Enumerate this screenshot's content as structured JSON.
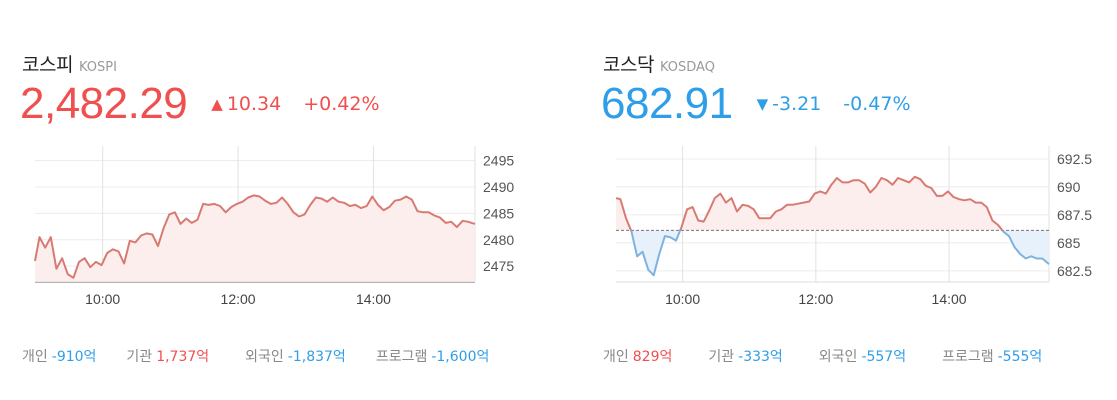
{
  "kospi": {
    "name_ko": "코스피",
    "name_en": "KOSPI",
    "price": "2,482.29",
    "direction": "up",
    "change": "10.34",
    "rate": "+0.42%",
    "investors": [
      {
        "label": "개인",
        "value": "-910억",
        "dir": "down"
      },
      {
        "label": "기관",
        "value": "1,737억",
        "dir": "up"
      },
      {
        "label": "외국인",
        "value": "-1,837억",
        "dir": "down"
      },
      {
        "label": "프로그램",
        "value": "-1,600억",
        "dir": "down"
      }
    ]
  },
  "kosdaq": {
    "name_ko": "코스닥",
    "name_en": "KOSDAQ",
    "price": "682.91",
    "direction": "down",
    "change": "-3.21",
    "rate": "-0.47%",
    "investors": [
      {
        "label": "개인",
        "value": "829억",
        "dir": "up"
      },
      {
        "label": "기관",
        "value": "-333억",
        "dir": "down"
      },
      {
        "label": "외국인",
        "value": "-557억",
        "dir": "down"
      },
      {
        "label": "프로그램",
        "value": "-555억",
        "dir": "down"
      }
    ]
  },
  "colors": {
    "up": "#f04f4f",
    "down": "#2f9ee8",
    "line_up": "#d97a72",
    "line_down": "#7fb2dd",
    "fill_up": "#fdeeee",
    "fill_down": "#e6f1fb"
  },
  "chart_data": [
    {
      "type": "line",
      "name": "KOSPI",
      "x_unit": "time",
      "xlim": [
        "09:00",
        "15:30"
      ],
      "ylim": [
        2472,
        2497
      ],
      "yticks": [
        2475,
        2480,
        2485,
        2490,
        2495
      ],
      "ytick_labels": [
        "2475",
        "2480",
        "2485",
        "2490",
        "2495"
      ],
      "xticks": [
        "10:00",
        "12:00",
        "14:00"
      ],
      "baseline": 2471.95,
      "points": [
        [
          "09:00",
          2476
        ],
        [
          "09:04",
          2480.5
        ],
        [
          "09:09",
          2478.5
        ],
        [
          "09:14",
          2480.5
        ],
        [
          "09:19",
          2474.5
        ],
        [
          "09:24",
          2476.5
        ],
        [
          "09:29",
          2473.5
        ],
        [
          "09:34",
          2472.8
        ],
        [
          "09:39",
          2475.8
        ],
        [
          "09:44",
          2476.5
        ],
        [
          "09:49",
          2474.8
        ],
        [
          "09:54",
          2475.8
        ],
        [
          "09:59",
          2475.2
        ],
        [
          "10:04",
          2477.5
        ],
        [
          "10:09",
          2478.2
        ],
        [
          "10:14",
          2477.8
        ],
        [
          "10:19",
          2475.5
        ],
        [
          "10:24",
          2479.8
        ],
        [
          "10:29",
          2479.5
        ],
        [
          "10:34",
          2480.8
        ],
        [
          "10:39",
          2481.2
        ],
        [
          "10:44",
          2481
        ],
        [
          "10:49",
          2478.8
        ],
        [
          "10:54",
          2482.2
        ],
        [
          "10:59",
          2484.8
        ],
        [
          "11:04",
          2485.2
        ],
        [
          "11:09",
          2483
        ],
        [
          "11:14",
          2484
        ],
        [
          "11:19",
          2483.2
        ],
        [
          "11:24",
          2483.8
        ],
        [
          "11:29",
          2486.8
        ],
        [
          "11:34",
          2486.6
        ],
        [
          "11:39",
          2486.8
        ],
        [
          "11:44",
          2486.4
        ],
        [
          "11:49",
          2485.2
        ],
        [
          "11:54",
          2486.2
        ],
        [
          "11:59",
          2486.8
        ],
        [
          "12:04",
          2487.2
        ],
        [
          "12:09",
          2488
        ],
        [
          "12:14",
          2488.4
        ],
        [
          "12:19",
          2488.2
        ],
        [
          "12:24",
          2487.4
        ],
        [
          "12:29",
          2486.8
        ],
        [
          "12:34",
          2487
        ],
        [
          "12:39",
          2488
        ],
        [
          "12:44",
          2486.8
        ],
        [
          "12:49",
          2485.2
        ],
        [
          "12:54",
          2484.4
        ],
        [
          "12:59",
          2484.8
        ],
        [
          "13:04",
          2486.6
        ],
        [
          "13:09",
          2488
        ],
        [
          "13:14",
          2487.8
        ],
        [
          "13:19",
          2487.2
        ],
        [
          "13:24",
          2488
        ],
        [
          "13:29",
          2487.2
        ],
        [
          "13:34",
          2487
        ],
        [
          "13:39",
          2486.4
        ],
        [
          "13:44",
          2486.6
        ],
        [
          "13:49",
          2486
        ],
        [
          "13:54",
          2486.4
        ],
        [
          "13:59",
          2488.2
        ],
        [
          "14:04",
          2486.6
        ],
        [
          "14:09",
          2485.6
        ],
        [
          "14:14",
          2486.2
        ],
        [
          "14:19",
          2487.4
        ],
        [
          "14:24",
          2487.6
        ],
        [
          "14:29",
          2488.2
        ],
        [
          "14:34",
          2487.6
        ],
        [
          "14:39",
          2485.4
        ],
        [
          "14:44",
          2485.2
        ],
        [
          "14:49",
          2485.2
        ],
        [
          "14:54",
          2484.6
        ],
        [
          "14:59",
          2484.2
        ],
        [
          "15:04",
          2483.2
        ],
        [
          "15:09",
          2483.4
        ],
        [
          "15:14",
          2482.4
        ],
        [
          "15:19",
          2483.6
        ],
        [
          "15:24",
          2483.4
        ],
        [
          "15:30",
          2483
        ]
      ]
    },
    {
      "type": "line",
      "name": "KOSDAQ",
      "x_unit": "time",
      "xlim": [
        "09:00",
        "15:30"
      ],
      "ylim": [
        681.5,
        693.3
      ],
      "yticks": [
        682.5,
        685,
        687.5,
        690,
        692.5
      ],
      "ytick_labels": [
        "682.5",
        "685",
        "687.5",
        "690",
        "692.5"
      ],
      "xticks": [
        "10:00",
        "12:00",
        "14:00"
      ],
      "baseline": 686.12,
      "points": [
        [
          "09:00",
          689
        ],
        [
          "09:04",
          688.9
        ],
        [
          "09:09",
          687.2
        ],
        [
          "09:14",
          686
        ],
        [
          "09:19",
          683.8
        ],
        [
          "09:24",
          684.2
        ],
        [
          "09:29",
          682.6
        ],
        [
          "09:34",
          682.1
        ],
        [
          "09:39",
          684
        ],
        [
          "09:44",
          685.6
        ],
        [
          "09:49",
          685.5
        ],
        [
          "09:54",
          685.2
        ],
        [
          "09:59",
          686.4
        ],
        [
          "10:04",
          688
        ],
        [
          "10:09",
          688.2
        ],
        [
          "10:14",
          687
        ],
        [
          "10:19",
          686.9
        ],
        [
          "10:24",
          687.9
        ],
        [
          "10:29",
          689
        ],
        [
          "10:34",
          689.4
        ],
        [
          "10:39",
          688.6
        ],
        [
          "10:44",
          689
        ],
        [
          "10:49",
          687.8
        ],
        [
          "10:54",
          688.4
        ],
        [
          "10:59",
          688.3
        ],
        [
          "11:04",
          688
        ],
        [
          "11:09",
          687.2
        ],
        [
          "11:14",
          687.2
        ],
        [
          "11:19",
          687.2
        ],
        [
          "11:24",
          687.8
        ],
        [
          "11:29",
          688
        ],
        [
          "11:34",
          688.4
        ],
        [
          "11:39",
          688.4
        ],
        [
          "11:44",
          688.5
        ],
        [
          "11:49",
          688.6
        ],
        [
          "11:54",
          688.7
        ],
        [
          "11:59",
          689.4
        ],
        [
          "12:04",
          689.6
        ],
        [
          "12:09",
          689.4
        ],
        [
          "12:14",
          690.2
        ],
        [
          "12:19",
          690.8
        ],
        [
          "12:24",
          690.4
        ],
        [
          "12:29",
          690.4
        ],
        [
          "12:34",
          690.6
        ],
        [
          "12:39",
          690.6
        ],
        [
          "12:44",
          690.3
        ],
        [
          "12:49",
          689.5
        ],
        [
          "12:54",
          690
        ],
        [
          "12:59",
          690.8
        ],
        [
          "13:04",
          690.6
        ],
        [
          "13:09",
          690.2
        ],
        [
          "13:14",
          690.8
        ],
        [
          "13:19",
          690.6
        ],
        [
          "13:24",
          690.4
        ],
        [
          "13:29",
          690.9
        ],
        [
          "13:34",
          690.7
        ],
        [
          "13:39",
          690.1
        ],
        [
          "13:44",
          689.9
        ],
        [
          "13:49",
          689.2
        ],
        [
          "13:54",
          689.2
        ],
        [
          "13:59",
          689.6
        ],
        [
          "14:04",
          689.1
        ],
        [
          "14:09",
          688.9
        ],
        [
          "14:14",
          688.8
        ],
        [
          "14:19",
          688.9
        ],
        [
          "14:24",
          688.6
        ],
        [
          "14:29",
          688.6
        ],
        [
          "14:34",
          688.2
        ],
        [
          "14:39",
          687
        ],
        [
          "14:44",
          686.6
        ],
        [
          "14:49",
          686
        ],
        [
          "14:54",
          685.6
        ],
        [
          "14:59",
          684.6
        ],
        [
          "15:04",
          684
        ],
        [
          "15:09",
          683.6
        ],
        [
          "15:14",
          683.8
        ],
        [
          "15:19",
          683.6
        ],
        [
          "15:24",
          683.6
        ],
        [
          "15:30",
          683.1
        ]
      ]
    }
  ]
}
